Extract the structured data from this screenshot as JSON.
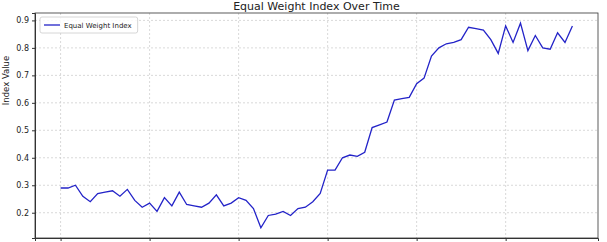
{
  "chart_data": {
    "type": "line",
    "title": "Equal Weight Index Over Time",
    "y_label": "Index Value",
    "x": [
      0,
      1,
      2,
      3,
      4,
      5,
      6,
      7,
      8,
      9,
      10,
      11,
      12,
      13,
      14,
      15,
      16,
      17,
      18,
      19,
      20,
      21,
      22,
      23,
      24,
      25,
      26,
      27,
      28,
      29,
      30,
      31,
      32,
      33,
      34,
      35,
      36,
      37,
      38,
      39,
      40,
      41,
      42,
      43,
      44,
      45,
      46,
      47,
      48,
      49,
      50,
      51,
      52,
      53,
      54,
      55,
      56,
      57,
      58,
      59,
      60,
      61,
      62,
      63,
      64,
      65,
      66,
      67,
      68,
      69
    ],
    "series": [
      {
        "name": "Equal Weight Index",
        "color": "#2323c8",
        "line_style": "solid",
        "marker": "none",
        "values": [
          0.29,
          0.29,
          0.3,
          0.26,
          0.24,
          0.27,
          0.275,
          0.28,
          0.26,
          0.285,
          0.245,
          0.22,
          0.235,
          0.205,
          0.255,
          0.225,
          0.275,
          0.23,
          0.225,
          0.22,
          0.235,
          0.265,
          0.225,
          0.235,
          0.255,
          0.245,
          0.215,
          0.145,
          0.19,
          0.195,
          0.205,
          0.19,
          0.215,
          0.22,
          0.24,
          0.27,
          0.355,
          0.355,
          0.4,
          0.41,
          0.405,
          0.42,
          0.51,
          0.52,
          0.53,
          0.61,
          0.615,
          0.62,
          0.67,
          0.69,
          0.77,
          0.8,
          0.815,
          0.82,
          0.83,
          0.875,
          0.87,
          0.865,
          0.83,
          0.78,
          0.88,
          0.82,
          0.89,
          0.79,
          0.845,
          0.8,
          0.795,
          0.855,
          0.82,
          0.88
        ]
      }
    ],
    "xlim": [
      -3.45,
      72.45
    ],
    "xticks": [
      0,
      12,
      24,
      36,
      48,
      60
    ],
    "ylim": [
      0.108,
      0.927
    ],
    "yticks": [
      0.2,
      0.3,
      0.4,
      0.5,
      0.6,
      0.7,
      0.8,
      0.9
    ],
    "grid": true,
    "legend": "upper left",
    "tick_labels": "y"
  }
}
